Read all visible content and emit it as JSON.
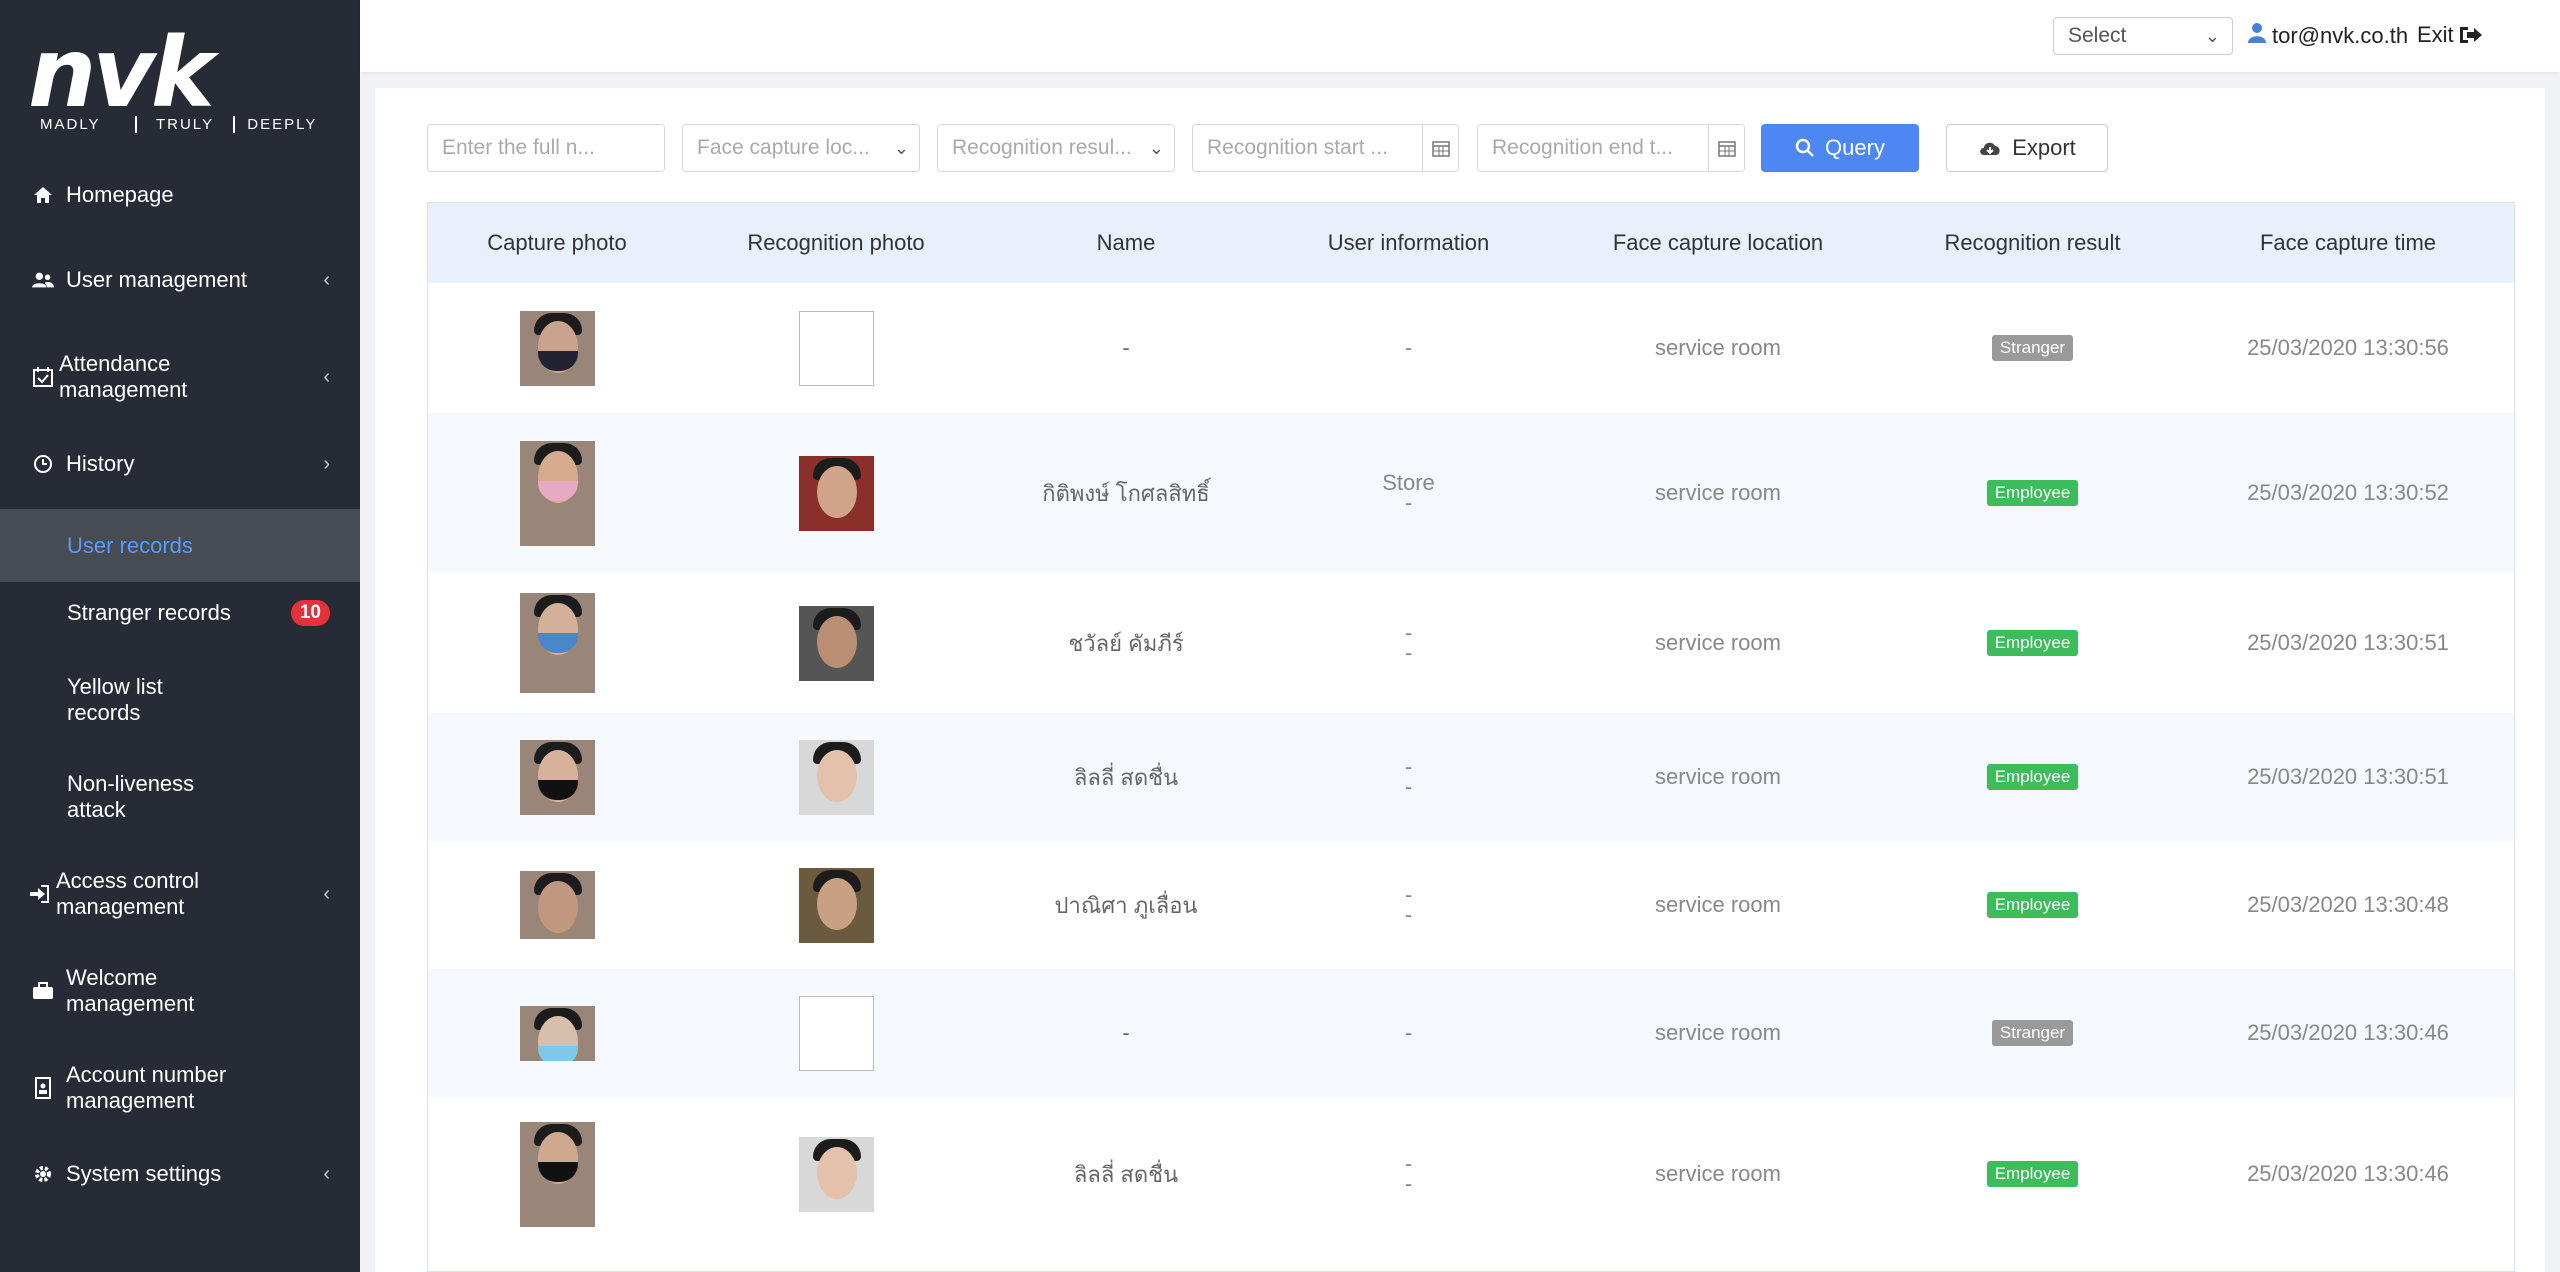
{
  "brand": {
    "logo": "nvk",
    "tagline": [
      "MADLY",
      "TRULY",
      "DEEPLY"
    ]
  },
  "sidebar": {
    "items": [
      {
        "label": "Homepage",
        "icon": "home-icon",
        "chevron": ""
      },
      {
        "label": "User management",
        "icon": "users-icon",
        "chevron": "‹"
      },
      {
        "label": "Attendance management",
        "icon": "calendar-check-icon",
        "chevron": "‹"
      },
      {
        "label": "History",
        "icon": "clock-icon",
        "chevron": "›"
      },
      {
        "label": "Access control management",
        "icon": "sign-in-icon",
        "chevron": "‹"
      },
      {
        "label": "Welcome management",
        "icon": "briefcase-icon",
        "chevron": ""
      },
      {
        "label": "Account number management",
        "icon": "id-card-icon",
        "chevron": ""
      },
      {
        "label": "System settings",
        "icon": "gear-icon",
        "chevron": "‹"
      }
    ],
    "history_sub": [
      {
        "label": "User records",
        "active": true
      },
      {
        "label": "Stranger records",
        "badge": "10"
      },
      {
        "label": "Yellow list records"
      },
      {
        "label": "Non-liveness attack"
      }
    ]
  },
  "topbar": {
    "select_label": "Select",
    "user_email": "tor@nvk.co.th",
    "exit_label": "Exit"
  },
  "filters": {
    "name_placeholder": "Enter the full n...",
    "location_placeholder": "Face capture loc...",
    "result_placeholder": "Recognition resul...",
    "start_placeholder": "Recognition start ...",
    "end_placeholder": "Recognition end t...",
    "query_label": "Query",
    "export_label": "Export"
  },
  "table": {
    "headers": [
      "Capture photo",
      "Recognition photo",
      "Name",
      "User information",
      "Face capture location",
      "Recognition result",
      "Face capture time"
    ],
    "rows": [
      {
        "name": "-",
        "info1": "-",
        "info2": "",
        "location": "service room",
        "result": "Stranger",
        "time": "25/03/2020 13:30:56"
      },
      {
        "name": "กิติพงษ์ โกศลสิทธิ์",
        "info1": "Store",
        "info2": "-",
        "location": "service room",
        "result": "Employee",
        "time": "25/03/2020 13:30:52"
      },
      {
        "name": "ชวัลย์ คัมภีร์",
        "info1": "-",
        "info2": "-",
        "location": "service room",
        "result": "Employee",
        "time": "25/03/2020 13:30:51"
      },
      {
        "name": "ลิลลี่ สดชื่น",
        "info1": "-",
        "info2": "-",
        "location": "service room",
        "result": "Employee",
        "time": "25/03/2020 13:30:51"
      },
      {
        "name": "ปาณิศา ภูเลื่อน",
        "info1": "-",
        "info2": "-",
        "location": "service room",
        "result": "Employee",
        "time": "25/03/2020 13:30:48"
      },
      {
        "name": "-",
        "info1": "-",
        "info2": "",
        "location": "service room",
        "result": "Stranger",
        "time": "25/03/2020 13:30:46"
      },
      {
        "name": "ลิลลี่ สดชื่น",
        "info1": "-",
        "info2": "-",
        "location": "service room",
        "result": "Employee",
        "time": "25/03/2020 13:30:46"
      }
    ]
  },
  "colors": {
    "sidebar": "#262b35",
    "accent": "#4d87f2",
    "employee": "#3cbc5a",
    "stranger": "#9a9a9a",
    "badge": "#e5323a"
  }
}
